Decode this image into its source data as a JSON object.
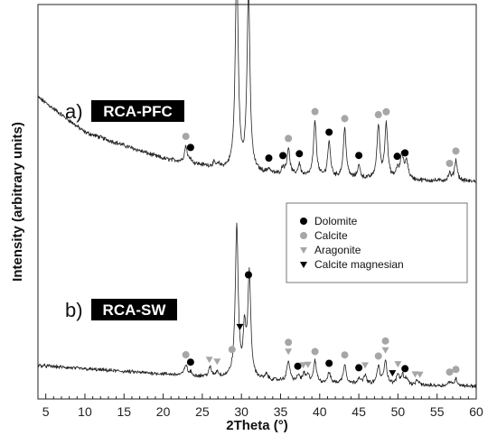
{
  "chart_data": {
    "type": "line",
    "xlabel": "2Theta (°)",
    "ylabel": "Intensity (arbitrary units)",
    "xlim": [
      4,
      60
    ],
    "x_ticks": [
      5,
      10,
      15,
      20,
      25,
      30,
      35,
      40,
      45,
      50,
      55,
      60
    ],
    "y_ticks_visible": false,
    "grid": false,
    "legend_position": "right-middle",
    "legend": [
      {
        "name": "Dolomite",
        "marker": "filled-circle",
        "color": "#000000"
      },
      {
        "name": "Calcite",
        "marker": "filled-circle",
        "color": "#a6a6a6"
      },
      {
        "name": "Aragonite",
        "marker": "triangle-down",
        "color": "#a6a6a6"
      },
      {
        "name": "Calcite magnesian",
        "marker": "triangle-down",
        "color": "#000000"
      }
    ],
    "series": [
      {
        "prefix": "a)",
        "name": "RCA-PFC",
        "line_color": "#222222",
        "baseline": [
          [
            4,
            150
          ],
          [
            10,
            90
          ],
          [
            20,
            45
          ],
          [
            30,
            22
          ],
          [
            40,
            12
          ],
          [
            50,
            8
          ],
          [
            60,
            6
          ]
        ],
        "peaks": [
          [
            22.9,
            28,
            0.2
          ],
          [
            23.5,
            8,
            0.15
          ],
          [
            26.5,
            6,
            0.2
          ],
          [
            27.1,
            4,
            0.2
          ],
          [
            29.4,
            355,
            0.22
          ],
          [
            30.9,
            310,
            0.22
          ],
          [
            33.5,
            8,
            0.2
          ],
          [
            35.3,
            12,
            0.2
          ],
          [
            36.0,
            45,
            0.22
          ],
          [
            37.4,
            20,
            0.2
          ],
          [
            39.4,
            95,
            0.22
          ],
          [
            41.2,
            60,
            0.22
          ],
          [
            43.2,
            85,
            0.22
          ],
          [
            45.0,
            22,
            0.2
          ],
          [
            47.5,
            90,
            0.22
          ],
          [
            48.5,
            95,
            0.22
          ],
          [
            49.9,
            15,
            0.2
          ],
          [
            50.5,
            40,
            0.25
          ],
          [
            51.1,
            30,
            0.25
          ],
          [
            56.6,
            12,
            0.2
          ],
          [
            57.4,
            35,
            0.22
          ]
        ],
        "markers": [
          {
            "x": 22.9,
            "type": "Calcite"
          },
          {
            "x": 23.5,
            "type": "Dolomite"
          },
          {
            "x": 29.4,
            "type": "Calcite"
          },
          {
            "x": 30.9,
            "type": "Dolomite"
          },
          {
            "x": 33.5,
            "type": "Dolomite"
          },
          {
            "x": 35.3,
            "type": "Dolomite"
          },
          {
            "x": 36.0,
            "type": "Calcite"
          },
          {
            "x": 37.4,
            "type": "Dolomite"
          },
          {
            "x": 39.4,
            "type": "Calcite"
          },
          {
            "x": 41.2,
            "type": "Dolomite"
          },
          {
            "x": 43.2,
            "type": "Calcite"
          },
          {
            "x": 45.0,
            "type": "Dolomite"
          },
          {
            "x": 47.5,
            "type": "Calcite"
          },
          {
            "x": 48.5,
            "type": "Calcite"
          },
          {
            "x": 49.9,
            "type": "Dolomite"
          },
          {
            "x": 50.9,
            "type": "Dolomite"
          },
          {
            "x": 56.6,
            "type": "Calcite"
          },
          {
            "x": 57.4,
            "type": "Calcite"
          }
        ]
      },
      {
        "prefix": "b)",
        "name": "RCA-SW",
        "line_color": "#222222",
        "baseline": [
          [
            4,
            45
          ],
          [
            10,
            38
          ],
          [
            20,
            28
          ],
          [
            30,
            18
          ],
          [
            40,
            10
          ],
          [
            50,
            6
          ],
          [
            60,
            4
          ]
        ],
        "peaks": [
          [
            22.9,
            22,
            0.2
          ],
          [
            23.5,
            6,
            0.15
          ],
          [
            26.0,
            18,
            0.2
          ],
          [
            26.9,
            10,
            0.2
          ],
          [
            29.4,
            300,
            0.22
          ],
          [
            30.4,
            90,
            0.2
          ],
          [
            31.0,
            205,
            0.22
          ],
          [
            33.2,
            10,
            0.2
          ],
          [
            36.0,
            40,
            0.22
          ],
          [
            37.3,
            12,
            0.2
          ],
          [
            38.0,
            15,
            0.2
          ],
          [
            38.5,
            12,
            0.2
          ],
          [
            39.4,
            42,
            0.22
          ],
          [
            41.2,
            20,
            0.22
          ],
          [
            43.2,
            38,
            0.22
          ],
          [
            45.0,
            12,
            0.2
          ],
          [
            45.8,
            18,
            0.2
          ],
          [
            47.5,
            35,
            0.22
          ],
          [
            48.4,
            48,
            0.22
          ],
          [
            50.0,
            20,
            0.22
          ],
          [
            50.6,
            18,
            0.22
          ],
          [
            51.1,
            12,
            0.22
          ],
          [
            52.5,
            10,
            0.2
          ],
          [
            56.6,
            8,
            0.2
          ],
          [
            57.4,
            14,
            0.22
          ]
        ],
        "markers": [
          {
            "x": 22.9,
            "type": "Calcite"
          },
          {
            "x": 23.5,
            "type": "Dolomite"
          },
          {
            "x": 25.9,
            "type": "Aragonite"
          },
          {
            "x": 26.9,
            "type": "Aragonite"
          },
          {
            "x": 28.8,
            "type": "Calcite"
          },
          {
            "x": 29.8,
            "type": "Calcite magnesian"
          },
          {
            "x": 30.9,
            "type": "Dolomite"
          },
          {
            "x": 36.0,
            "type": "Aragonite"
          },
          {
            "x": 36.0,
            "type": "Calcite"
          },
          {
            "x": 37.2,
            "type": "Dolomite"
          },
          {
            "x": 37.9,
            "type": "Aragonite"
          },
          {
            "x": 38.5,
            "type": "Aragonite"
          },
          {
            "x": 39.4,
            "type": "Calcite"
          },
          {
            "x": 41.2,
            "type": "Dolomite"
          },
          {
            "x": 43.2,
            "type": "Calcite"
          },
          {
            "x": 45.0,
            "type": "Dolomite"
          },
          {
            "x": 45.8,
            "type": "Aragonite"
          },
          {
            "x": 47.5,
            "type": "Calcite"
          },
          {
            "x": 48.4,
            "type": "Aragonite"
          },
          {
            "x": 48.4,
            "type": "Calcite"
          },
          {
            "x": 49.3,
            "type": "Calcite magnesian"
          },
          {
            "x": 50.0,
            "type": "Aragonite"
          },
          {
            "x": 50.9,
            "type": "Dolomite"
          },
          {
            "x": 52.2,
            "type": "Aragonite"
          },
          {
            "x": 52.8,
            "type": "Aragonite"
          },
          {
            "x": 56.6,
            "type": "Calcite"
          },
          {
            "x": 57.4,
            "type": "Calcite"
          }
        ]
      }
    ]
  }
}
